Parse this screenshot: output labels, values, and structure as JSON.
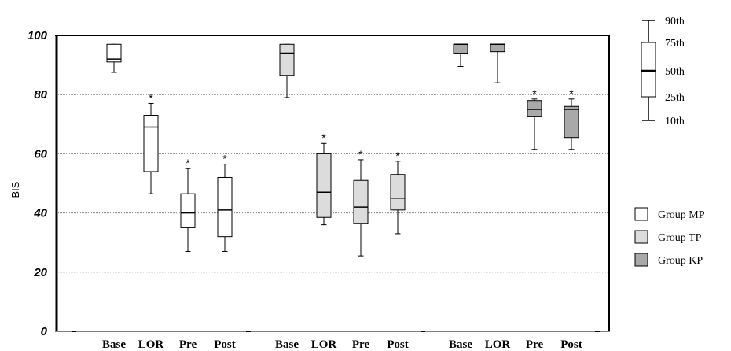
{
  "chart_data": {
    "type": "boxplot",
    "ylabel": "BIS",
    "ylim": [
      0,
      100
    ],
    "yticks": [
      0,
      20,
      40,
      60,
      80,
      100
    ],
    "grid": "horizontal dotted",
    "groups": [
      {
        "name": "Group MP",
        "color": "#ffffff",
        "boxes": [
          {
            "category": "Base",
            "p10": 87.5,
            "p25": 91,
            "median": 92,
            "p75": 97,
            "p90": 97,
            "star": false
          },
          {
            "category": "LOR",
            "p10": 46.5,
            "p25": 54,
            "median": 69,
            "p75": 73,
            "p90": 77,
            "star": true
          },
          {
            "category": "Pre",
            "p10": 27,
            "p25": 35,
            "median": 40,
            "p75": 46.5,
            "p90": 55,
            "star": true
          },
          {
            "category": "Post",
            "p10": 27,
            "p25": 32,
            "median": 41,
            "p75": 52,
            "p90": 56.5,
            "star": true
          }
        ]
      },
      {
        "name": "Group TP",
        "color": "#dcdcdc",
        "boxes": [
          {
            "category": "Base",
            "p10": 79,
            "p25": 86.5,
            "median": 94,
            "p75": 97,
            "p90": 97,
            "star": false
          },
          {
            "category": "LOR",
            "p10": 36,
            "p25": 38.5,
            "median": 47,
            "p75": 60,
            "p90": 63.5,
            "star": true
          },
          {
            "category": "Pre",
            "p10": 25.5,
            "p25": 36.5,
            "median": 42,
            "p75": 51,
            "p90": 58,
            "star": true
          },
          {
            "category": "Post",
            "p10": 33,
            "p25": 41,
            "median": 45,
            "p75": 53,
            "p90": 57.5,
            "star": true
          }
        ]
      },
      {
        "name": "Group KP",
        "color": "#a9a9a9",
        "boxes": [
          {
            "category": "Base",
            "p10": 89.5,
            "p25": 94,
            "median": 97,
            "p75": 97,
            "p90": 97,
            "star": false
          },
          {
            "category": "LOR",
            "p10": 84,
            "p25": 94.5,
            "median": 97,
            "p75": 97,
            "p90": 97,
            "star": false
          },
          {
            "category": "Pre",
            "p10": 61.5,
            "p25": 72.5,
            "median": 75,
            "p75": 78,
            "p90": 78.5,
            "star": true
          },
          {
            "category": "Post",
            "p10": 61.5,
            "p25": 65.5,
            "median": 75,
            "p75": 76,
            "p90": 78.5,
            "star": true
          }
        ]
      }
    ],
    "category_labels": [
      "Base",
      "LOR",
      "Pre",
      "Post"
    ],
    "star_symbol": "*",
    "legend": {
      "placement": "right",
      "entries": [
        "Group MP",
        "Group TP",
        "Group KP"
      ]
    },
    "percentile_key": {
      "placement": "top-right",
      "labels": [
        "90th",
        "75th",
        "50th",
        "25th",
        "10th"
      ]
    }
  }
}
